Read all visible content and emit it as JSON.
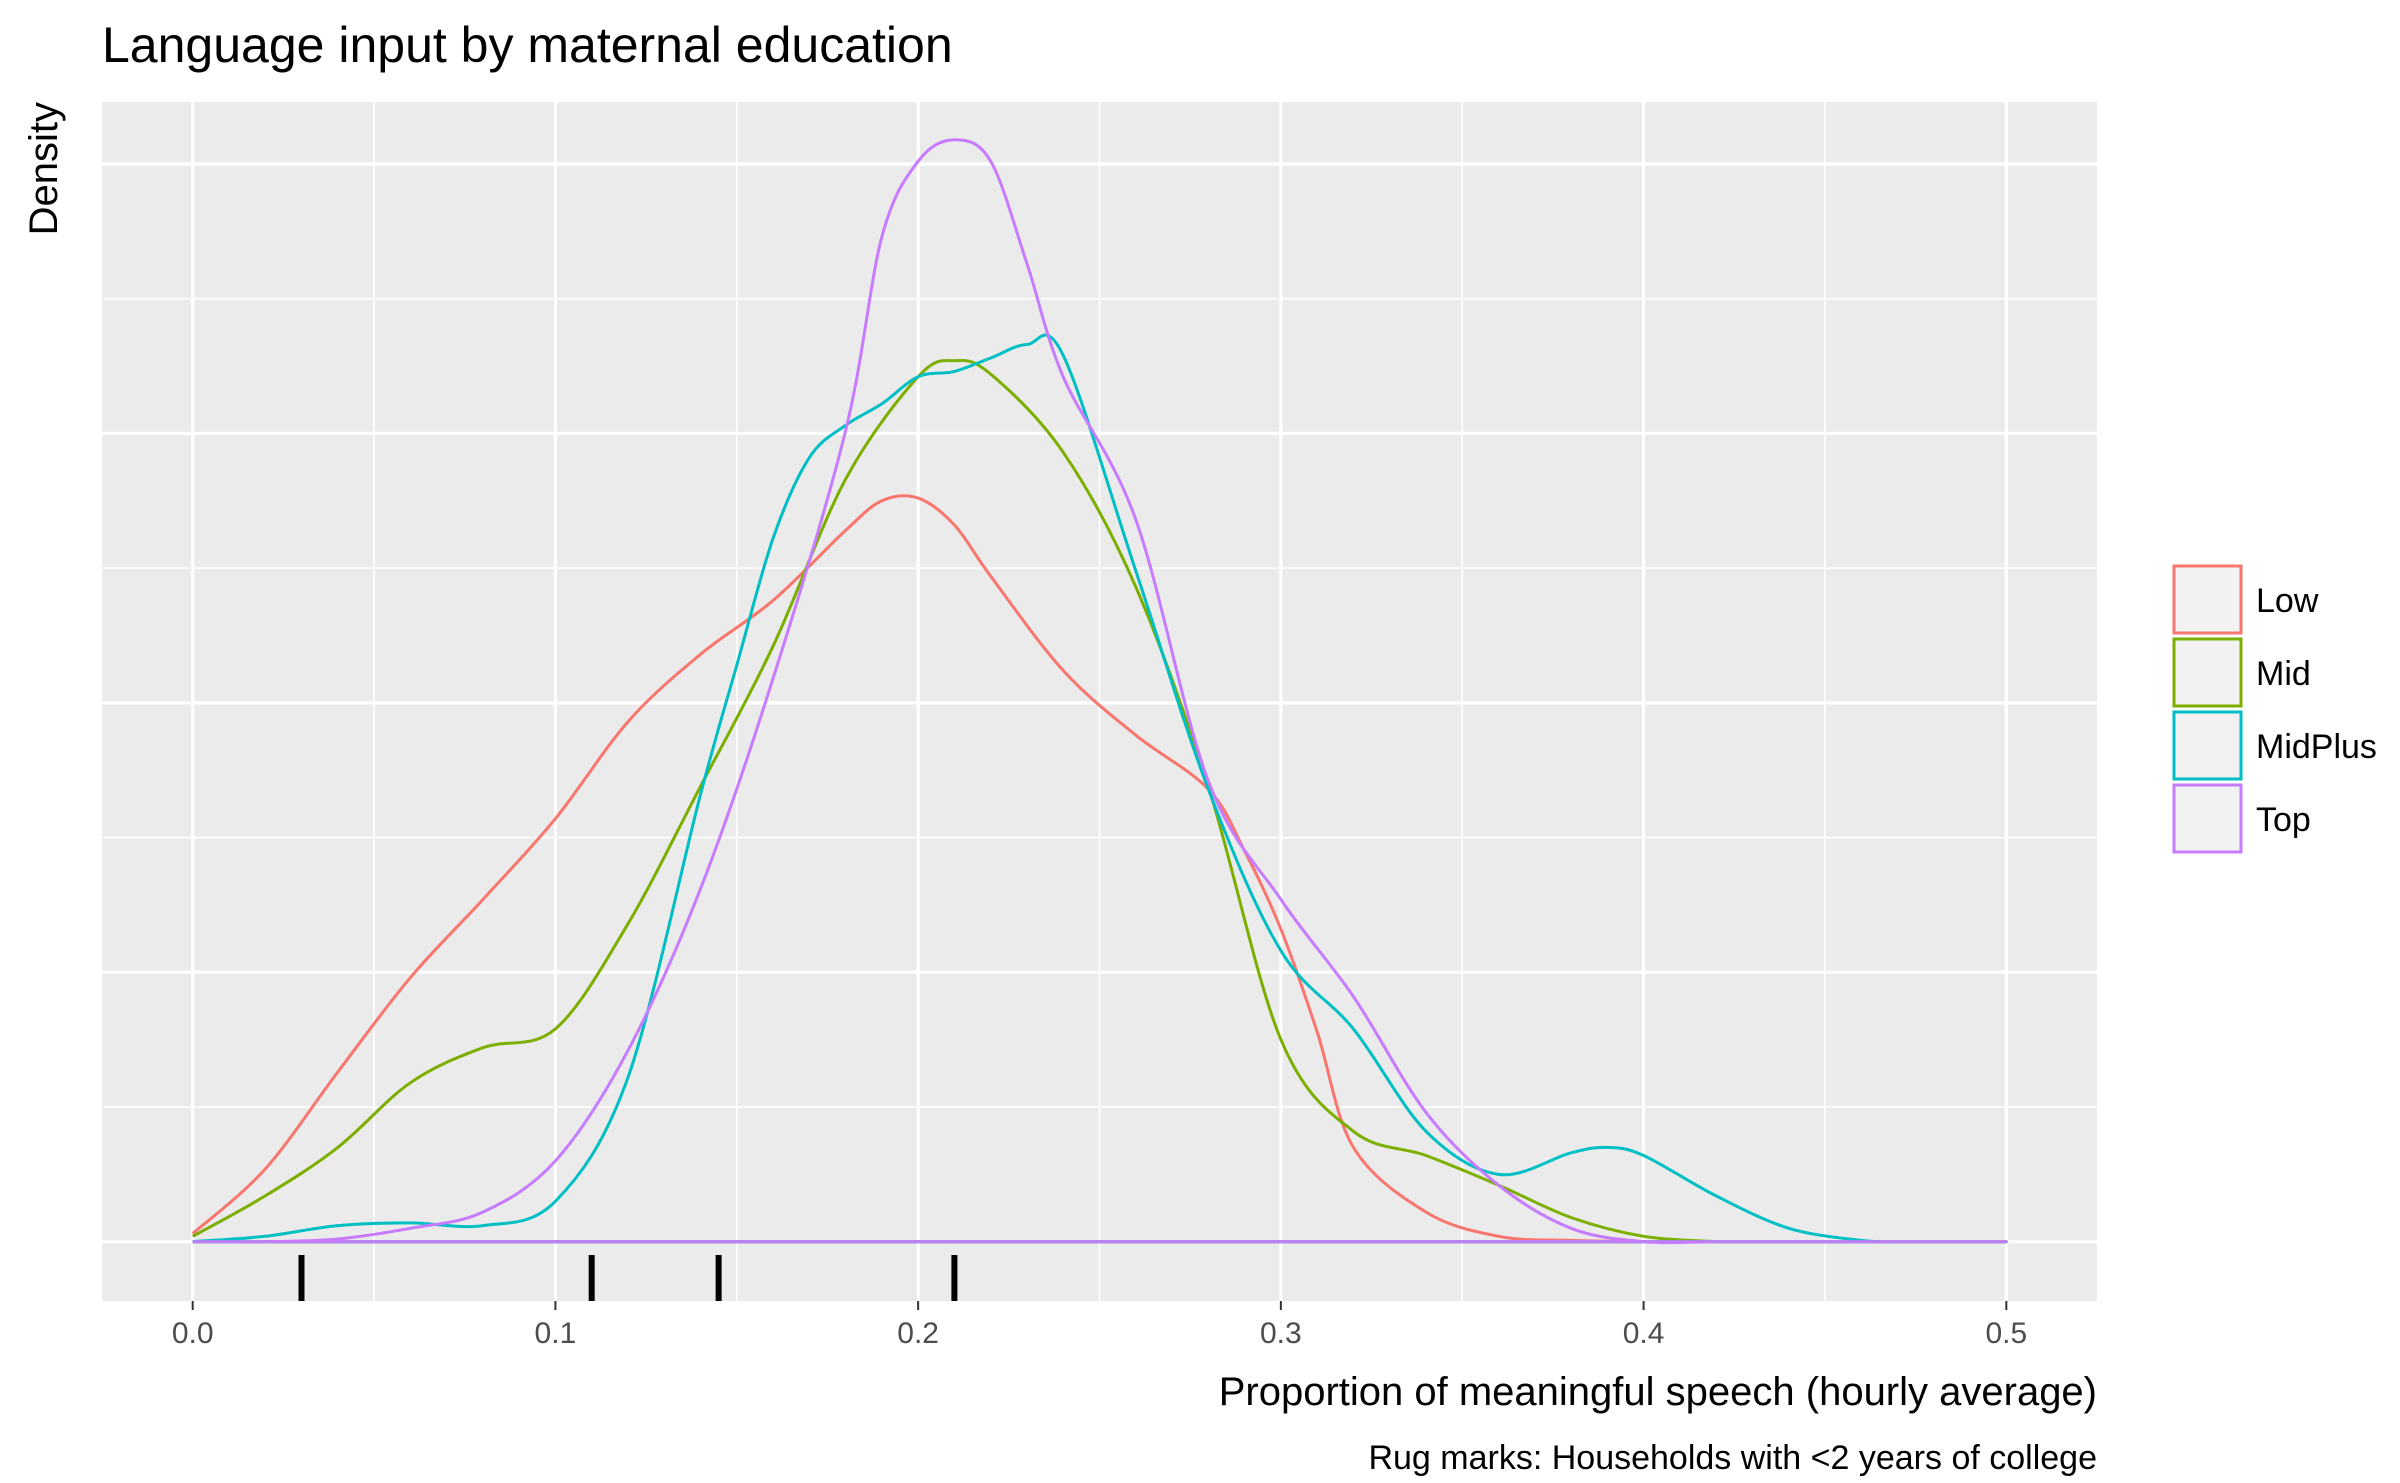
{
  "chart_data": {
    "type": "density",
    "title": "Language input by maternal education",
    "xlabel": "Proportion of meaningful speech (hourly average)",
    "ylabel": "Density",
    "caption": "Rug marks: Households with <2 years of college",
    "xlim": [
      -0.025,
      0.525
    ],
    "ylim": [
      -0.22,
      4.23
    ],
    "x_ticks": [
      0.0,
      0.1,
      0.2,
      0.3,
      0.4,
      0.5
    ],
    "x_tick_labels": [
      "0.0",
      "0.1",
      "0.2",
      "0.3",
      "0.4",
      "0.5"
    ],
    "y_gridlines": [
      0.5,
      1.0,
      1.5,
      2.0,
      2.5,
      3.0,
      3.5,
      4.0
    ],
    "y_tick_labels_shown": false,
    "grid": true,
    "legend_position": "right",
    "rug_x": [
      0.03,
      0.11,
      0.145,
      0.21
    ],
    "colors": {
      "panel": "#EBEBEB",
      "grid": "#FFFFFF",
      "Low": "#F8766D",
      "Mid": "#7CAE00",
      "MidPlus": "#00BFC4",
      "Top": "#C77CFF",
      "rug": "#000000"
    },
    "series": [
      {
        "name": "Low",
        "x": [
          0.0,
          0.02,
          0.04,
          0.06,
          0.08,
          0.1,
          0.12,
          0.14,
          0.16,
          0.18,
          0.19,
          0.2,
          0.21,
          0.22,
          0.24,
          0.26,
          0.28,
          0.29,
          0.3,
          0.31,
          0.32,
          0.34,
          0.36,
          0.38,
          0.4,
          0.42
        ],
        "y": [
          0.03,
          0.27,
          0.63,
          0.98,
          1.27,
          1.57,
          1.93,
          2.18,
          2.38,
          2.64,
          2.75,
          2.76,
          2.66,
          2.47,
          2.12,
          1.88,
          1.68,
          1.45,
          1.16,
          0.78,
          0.35,
          0.11,
          0.02,
          0.005,
          0.0,
          0.0
        ]
      },
      {
        "name": "Mid",
        "x": [
          0.0,
          0.02,
          0.04,
          0.06,
          0.08,
          0.1,
          0.12,
          0.14,
          0.16,
          0.18,
          0.2,
          0.21,
          0.22,
          0.24,
          0.26,
          0.28,
          0.3,
          0.32,
          0.34,
          0.36,
          0.38,
          0.4,
          0.42
        ],
        "y": [
          0.02,
          0.17,
          0.35,
          0.59,
          0.72,
          0.79,
          1.18,
          1.69,
          2.21,
          2.83,
          3.21,
          3.27,
          3.22,
          2.93,
          2.43,
          1.69,
          0.75,
          0.41,
          0.32,
          0.21,
          0.09,
          0.02,
          0.0
        ]
      },
      {
        "name": "MidPlus",
        "x": [
          0.0,
          0.02,
          0.04,
          0.06,
          0.08,
          0.1,
          0.12,
          0.14,
          0.15,
          0.16,
          0.17,
          0.18,
          0.19,
          0.2,
          0.21,
          0.22,
          0.23,
          0.24,
          0.26,
          0.28,
          0.3,
          0.32,
          0.34,
          0.36,
          0.38,
          0.39,
          0.4,
          0.42,
          0.44,
          0.46,
          0.47
        ],
        "y": [
          0.0,
          0.02,
          0.06,
          0.07,
          0.06,
          0.15,
          0.61,
          1.66,
          2.14,
          2.61,
          2.91,
          3.03,
          3.11,
          3.21,
          3.23,
          3.28,
          3.33,
          3.29,
          2.49,
          1.68,
          1.08,
          0.79,
          0.41,
          0.25,
          0.33,
          0.35,
          0.32,
          0.17,
          0.05,
          0.005,
          0.0
        ]
      },
      {
        "name": "Top",
        "x": [
          0.0,
          0.02,
          0.04,
          0.06,
          0.08,
          0.1,
          0.12,
          0.14,
          0.16,
          0.18,
          0.19,
          0.2,
          0.21,
          0.22,
          0.23,
          0.24,
          0.26,
          0.28,
          0.3,
          0.32,
          0.34,
          0.36,
          0.38,
          0.4,
          0.42,
          0.44
        ],
        "y": [
          0.0,
          0.0,
          0.01,
          0.05,
          0.11,
          0.3,
          0.71,
          1.31,
          2.09,
          3.01,
          3.73,
          4.01,
          4.09,
          4.01,
          3.63,
          3.21,
          2.68,
          1.71,
          1.27,
          0.91,
          0.48,
          0.21,
          0.05,
          0.0,
          0.0,
          0.0
        ]
      }
    ]
  }
}
